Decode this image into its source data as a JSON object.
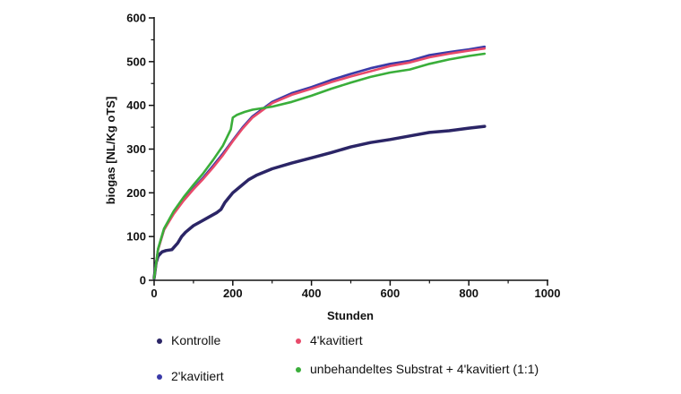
{
  "chart_data": {
    "type": "line",
    "title": "",
    "xlabel": "Stunden",
    "ylabel": "biogas [NL/Kg oTS]",
    "xlim": [
      0,
      1000
    ],
    "ylim": [
      0,
      600
    ],
    "xticks": [
      0,
      200,
      400,
      600,
      800,
      1000
    ],
    "yticks": [
      0,
      100,
      200,
      300,
      400,
      500,
      600
    ],
    "grid": false,
    "series": [
      {
        "name": "Kontrolle",
        "color": "#2b2566",
        "x": [
          0,
          5,
          10,
          15,
          20,
          30,
          45,
          60,
          70,
          80,
          100,
          120,
          140,
          160,
          170,
          180,
          200,
          220,
          240,
          260,
          300,
          350,
          400,
          450,
          500,
          550,
          600,
          650,
          700,
          750,
          800,
          840
        ],
        "y": [
          5,
          40,
          55,
          60,
          65,
          68,
          70,
          85,
          100,
          110,
          125,
          135,
          145,
          155,
          162,
          178,
          200,
          215,
          230,
          240,
          255,
          268,
          280,
          292,
          305,
          315,
          322,
          330,
          338,
          342,
          348,
          352
        ]
      },
      {
        "name": "2'kavitiert",
        "color": "#3a3aa8",
        "x": [
          0,
          10,
          25,
          50,
          75,
          100,
          125,
          150,
          175,
          200,
          225,
          250,
          300,
          350,
          400,
          450,
          500,
          550,
          600,
          650,
          700,
          750,
          800,
          840
        ],
        "y": [
          5,
          70,
          115,
          155,
          185,
          210,
          235,
          262,
          290,
          320,
          350,
          375,
          408,
          428,
          442,
          458,
          472,
          485,
          495,
          502,
          515,
          522,
          528,
          534
        ]
      },
      {
        "name": "4'kavitiert",
        "color": "#e84a6a",
        "x": [
          0,
          10,
          25,
          50,
          75,
          100,
          125,
          150,
          175,
          200,
          225,
          250,
          300,
          350,
          400,
          450,
          500,
          550,
          600,
          650,
          700,
          750,
          800,
          840
        ],
        "y": [
          5,
          70,
          115,
          152,
          182,
          208,
          232,
          258,
          286,
          318,
          347,
          372,
          405,
          424,
          438,
          453,
          466,
          478,
          490,
          498,
          510,
          518,
          525,
          530
        ]
      },
      {
        "name": "unbehandeltes Substrat + 4'kavitiert (1:1)",
        "color": "#3aae3a",
        "x": [
          0,
          10,
          25,
          50,
          75,
          100,
          125,
          150,
          175,
          195,
          200,
          210,
          230,
          250,
          300,
          350,
          400,
          450,
          500,
          550,
          600,
          650,
          700,
          750,
          800,
          840
        ],
        "y": [
          5,
          72,
          118,
          158,
          190,
          218,
          245,
          275,
          308,
          345,
          372,
          378,
          385,
          390,
          397,
          408,
          422,
          438,
          452,
          465,
          475,
          482,
          495,
          505,
          513,
          518
        ]
      }
    ],
    "legend": {
      "placement": "bottom",
      "items": [
        "Kontrolle",
        "4'kavitiert",
        "2'kavitiert",
        "unbehandeltes Substrat + 4'kavitiert (1:1)"
      ]
    }
  }
}
